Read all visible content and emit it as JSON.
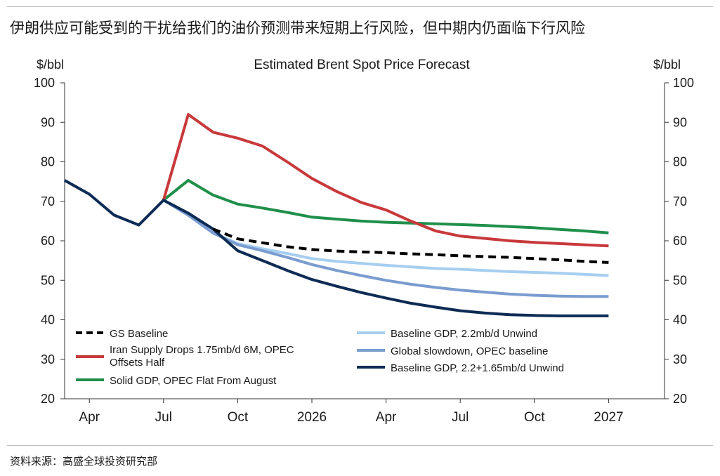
{
  "header": {
    "headline": "伊朗供应可能受到的干扰给我们的油价预测带来短期上行风险，但中期内仍面临下行风险"
  },
  "footer": {
    "source": "资料来源：高盛全球投资研究部"
  },
  "chart_data": {
    "type": "line",
    "title": "Estimated Brent Spot Price Forecast",
    "ylabel_left": "$/bbl",
    "ylabel_right": "$/bbl",
    "ylim": [
      20,
      100
    ],
    "yticks": [
      20,
      30,
      40,
      50,
      60,
      70,
      80,
      90,
      100
    ],
    "xlim": [
      "2025-03",
      "2027-02"
    ],
    "xticks": [
      {
        "x": "2025-04",
        "label": "Apr"
      },
      {
        "x": "2025-07",
        "label": "Jul"
      },
      {
        "x": "2025-10",
        "label": "Oct"
      },
      {
        "x": "2026-01",
        "label": "2026"
      },
      {
        "x": "2026-04",
        "label": "Apr"
      },
      {
        "x": "2026-07",
        "label": "Jul"
      },
      {
        "x": "2026-10",
        "label": "Oct"
      },
      {
        "x": "2027-01",
        "label": "2027"
      }
    ],
    "grid": false,
    "legend_position": "bottom-left (inside plot)",
    "series": [
      {
        "name": "GS Baseline",
        "color": "#000000",
        "dash": "dashed",
        "x": [
          "2025-09",
          "2025-10",
          "2025-11",
          "2025-12",
          "2026-01",
          "2026-02",
          "2026-03",
          "2026-04",
          "2026-05",
          "2026-06",
          "2026-07",
          "2026-08",
          "2026-09",
          "2026-10",
          "2026-11",
          "2026-12",
          "2027-01"
        ],
        "y": [
          63,
          60.5,
          59.5,
          58.5,
          57.8,
          57.4,
          57.2,
          57,
          56.7,
          56.5,
          56.2,
          56,
          55.8,
          55.5,
          55.2,
          54.8,
          54.5
        ]
      },
      {
        "name": "Iran Supply Drops 1.75mb/d 6M, OPEC Offsets Half",
        "color": "#c8393b",
        "dash": "solid",
        "x": [
          "2025-07",
          "2025-08",
          "2025-09",
          "2025-10",
          "2025-11",
          "2025-12",
          "2026-01",
          "2026-02",
          "2026-03",
          "2026-04",
          "2026-05",
          "2026-06",
          "2026-07",
          "2026-08",
          "2026-09",
          "2026-10",
          "2026-11",
          "2026-12",
          "2027-01"
        ],
        "y": [
          70.3,
          92,
          87.5,
          86,
          84,
          80,
          75.8,
          72.5,
          69.7,
          67.8,
          65,
          62.5,
          61.2,
          60.6,
          60,
          59.6,
          59.3,
          59,
          58.7
        ]
      },
      {
        "name": "Solid GDP, OPEC Flat From August",
        "color": "#1f8f4a",
        "dash": "solid",
        "x": [
          "2025-07",
          "2025-08",
          "2025-09",
          "2025-10",
          "2025-11",
          "2025-12",
          "2026-01",
          "2026-02",
          "2026-03",
          "2026-04",
          "2026-05",
          "2026-06",
          "2026-07",
          "2026-08",
          "2026-09",
          "2026-10",
          "2026-11",
          "2026-12",
          "2027-01"
        ],
        "y": [
          70.3,
          75.3,
          71.6,
          69.3,
          68.3,
          67.2,
          66,
          65.5,
          65,
          64.7,
          64.5,
          64.3,
          64.1,
          63.9,
          63.6,
          63.3,
          62.9,
          62.5,
          62
        ]
      },
      {
        "name": "Baseline GDP, 2.2mb/d Unwind",
        "color": "#a6cef0",
        "dash": "solid",
        "x": [
          "2025-07",
          "2025-08",
          "2025-09",
          "2025-10",
          "2025-11",
          "2025-12",
          "2026-01",
          "2026-02",
          "2026-03",
          "2026-04",
          "2026-05",
          "2026-06",
          "2026-07",
          "2026-08",
          "2026-09",
          "2026-10",
          "2026-11",
          "2026-12",
          "2027-01"
        ],
        "y": [
          70.3,
          66.5,
          62,
          59.3,
          58,
          56.8,
          55.5,
          54.8,
          54.3,
          53.8,
          53.4,
          53,
          52.8,
          52.5,
          52.2,
          52,
          51.8,
          51.5,
          51.2
        ]
      },
      {
        "name": "Global slowdown, OPEC baseline",
        "color": "#7a9ccf",
        "dash": "solid",
        "x": [
          "2025-07",
          "2025-08",
          "2025-09",
          "2025-10",
          "2025-11",
          "2025-12",
          "2026-01",
          "2026-02",
          "2026-03",
          "2026-04",
          "2026-05",
          "2026-06",
          "2026-07",
          "2026-08",
          "2026-09",
          "2026-10",
          "2026-11",
          "2026-12",
          "2027-01"
        ],
        "y": [
          70.3,
          66.5,
          62,
          59,
          57.5,
          55.8,
          54,
          52.5,
          51.2,
          50,
          49,
          48.2,
          47.5,
          47,
          46.5,
          46.2,
          46,
          45.9,
          45.9
        ]
      },
      {
        "name": "Baseline GDP, 2.2+1.65mb/d Unwind",
        "color": "#0d2b54",
        "dash": "solid",
        "x": [
          "2025-03",
          "2025-04",
          "2025-05",
          "2025-06",
          "2025-07",
          "2025-08",
          "2025-09",
          "2025-10",
          "2025-11",
          "2025-12",
          "2026-01",
          "2026-02",
          "2026-03",
          "2026-04",
          "2026-05",
          "2026-06",
          "2026-07",
          "2026-08",
          "2026-09",
          "2026-10",
          "2026-11",
          "2026-12",
          "2027-01"
        ],
        "y": [
          75.3,
          71.8,
          66.5,
          64,
          70.3,
          67,
          63,
          57.5,
          55,
          52.5,
          50.2,
          48.5,
          46.9,
          45.5,
          44.2,
          43.2,
          42.3,
          41.7,
          41.3,
          41.1,
          41,
          41,
          41
        ]
      }
    ]
  }
}
